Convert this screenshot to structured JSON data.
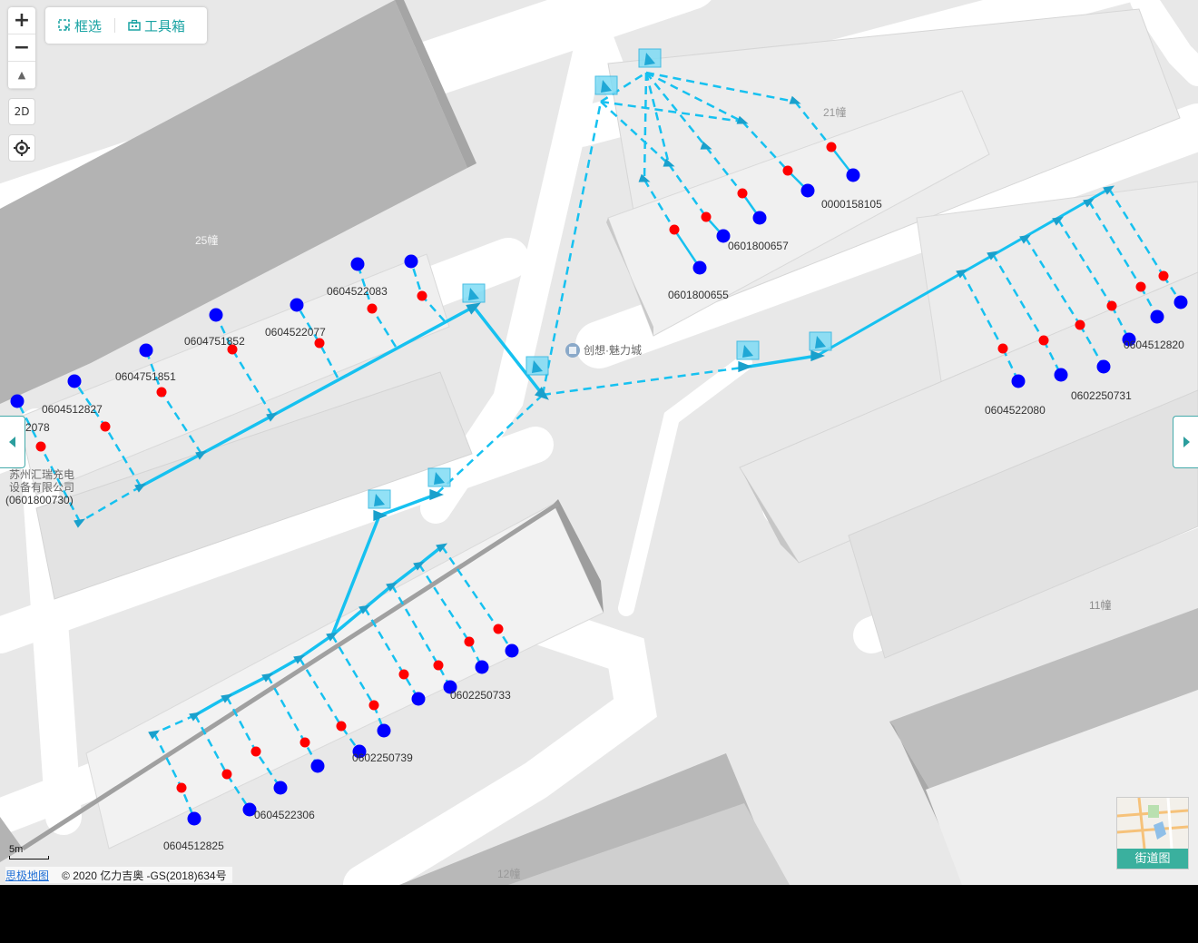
{
  "toolbar": {
    "select_label": "框选",
    "toolbox_label": "工具箱"
  },
  "controls": {
    "zoom_in": "+",
    "zoom_out": "−",
    "compass": "▲",
    "view_mode": "2D",
    "locate_icon": "locate-icon"
  },
  "colors": {
    "cable": "#16c1f0",
    "cable_dark": "#1aa0cc",
    "node_red": "#ff0000",
    "node_blue": "#0000ff",
    "building_dark": "#b5b5b5",
    "road": "#ffffff",
    "accent": "#1aa3a3"
  },
  "labels": {
    "l1": "0000158105",
    "l2": "0601800657",
    "l3": "0601800655",
    "l4": "0604522083",
    "l5": "0604522077",
    "l6": "0604751852",
    "l7": "0604751851",
    "l8": "0604512827",
    "l9": "2078",
    "l10": "0604522080",
    "l11": "0602250731",
    "l12": "0604512820",
    "l13": "0602250733",
    "l14": "0602250739",
    "l15": "0604522306",
    "l16": "0604512825"
  },
  "company": {
    "line1": "苏州汇瑞充电",
    "line2": "设备有限公司",
    "line3": "(0601800730)"
  },
  "buildings": {
    "b25": "25幢",
    "b21": "21幢",
    "b11": "11幢",
    "b12": "12幢"
  },
  "poi": {
    "name": "创想·魅力城"
  },
  "scale": {
    "label": "5m"
  },
  "copyright": {
    "brand": "思极地图",
    "text": "© 2020 亿力吉奥 -GS(2018)634号"
  },
  "street_view": {
    "label": "街道图"
  }
}
